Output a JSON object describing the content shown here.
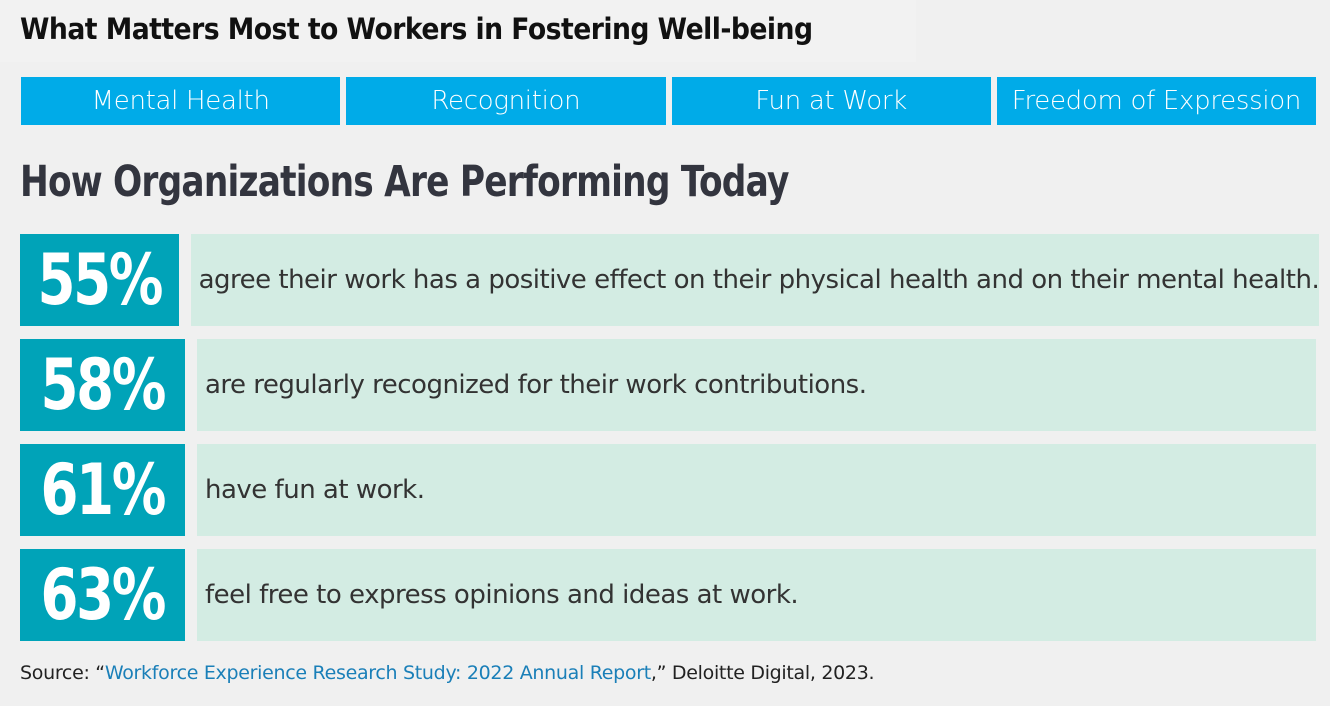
{
  "header": {
    "title": "What Matters Most to Workers in Fostering Well-being"
  },
  "categories": [
    {
      "label": "Mental Health"
    },
    {
      "label": "Recognition"
    },
    {
      "label": "Fun at Work"
    },
    {
      "label": "Freedom of Expression"
    }
  ],
  "section": {
    "title": "How Organizations Are Performing Today"
  },
  "stats": [
    {
      "value": "55%",
      "text": "agree their work has a positive effect on their physical health and on their mental health."
    },
    {
      "value": "58%",
      "text": "are regularly recognized for their work contributions."
    },
    {
      "value": "61%",
      "text": "have fun at work."
    },
    {
      "value": "63%",
      "text": "feel free to express opinions and ideas at work."
    }
  ],
  "source": {
    "prefix": "Source: “",
    "link_text": "Workforce Experience Research Study: 2022 Annual Report",
    "suffix": ",” Deloitte Digital, 2023."
  },
  "colors": {
    "tab_blue": "#00abe8",
    "stat_teal": "#00a3b8",
    "stat_bg_mint": "#d3ece3",
    "link_blue": "#1a7fb8",
    "heading_dark": "#33353f"
  }
}
